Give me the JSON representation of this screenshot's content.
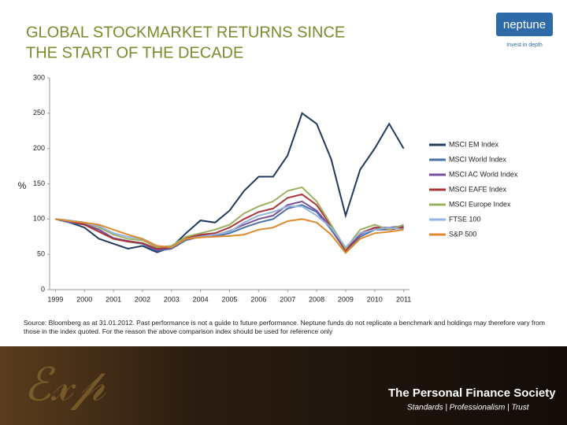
{
  "chart_data": {
    "type": "line",
    "title_lines": [
      "GLOBAL STOCKMARKET RETURNS SINCE",
      "THE START OF THE DECADE"
    ],
    "y_label": "%",
    "x": [
      1999,
      1999.5,
      2000,
      2000.5,
      2001,
      2001.5,
      2002,
      2002.5,
      2003,
      2003.5,
      2004,
      2004.5,
      2005,
      2005.5,
      2006,
      2006.5,
      2007,
      2007.5,
      2008,
      2008.5,
      2009,
      2009.5,
      2010,
      2010.5,
      2011
    ],
    "series": [
      {
        "name": "MSCI EM Index",
        "color": "#1f3a5c",
        "values": [
          100,
          95,
          88,
          72,
          65,
          58,
          62,
          53,
          60,
          80,
          98,
          95,
          112,
          140,
          160,
          160,
          190,
          250,
          235,
          185,
          105,
          170,
          200,
          235,
          200
        ]
      },
      {
        "name": "MSCI World Index",
        "color": "#4a70a8",
        "values": [
          100,
          95,
          92,
          85,
          72,
          68,
          65,
          55,
          58,
          70,
          75,
          75,
          80,
          88,
          95,
          100,
          115,
          120,
          110,
          85,
          55,
          75,
          85,
          85,
          88
        ]
      },
      {
        "name": "MSCI AC World Index",
        "color": "#7b4f9c",
        "values": [
          100,
          96,
          93,
          85,
          73,
          69,
          66,
          56,
          59,
          72,
          77,
          77,
          83,
          92,
          100,
          105,
          120,
          125,
          112,
          88,
          56,
          78,
          88,
          88,
          90
        ]
      },
      {
        "name": "MSCI EAFE Index",
        "color": "#a83838",
        "values": [
          100,
          97,
          92,
          82,
          72,
          68,
          66,
          58,
          60,
          73,
          78,
          80,
          88,
          100,
          110,
          115,
          130,
          135,
          120,
          90,
          55,
          80,
          88,
          85,
          88
        ]
      },
      {
        "name": "MSCI Europe Index",
        "color": "#9bb060",
        "values": [
          100,
          98,
          95,
          88,
          78,
          72,
          70,
          60,
          62,
          75,
          80,
          85,
          92,
          108,
          118,
          125,
          140,
          145,
          125,
          92,
          58,
          85,
          92,
          85,
          92
        ]
      },
      {
        "name": "FTSE 100",
        "color": "#93b3e0",
        "values": [
          100,
          98,
          95,
          90,
          80,
          75,
          72,
          62,
          60,
          72,
          75,
          78,
          82,
          95,
          105,
          110,
          118,
          118,
          105,
          88,
          60,
          80,
          85,
          88,
          85
        ]
      },
      {
        "name": "S&P 500",
        "color": "#e08a30",
        "values": [
          100,
          97,
          95,
          92,
          85,
          78,
          72,
          62,
          60,
          72,
          74,
          75,
          76,
          78,
          85,
          88,
          97,
          100,
          95,
          78,
          52,
          72,
          80,
          82,
          85
        ]
      }
    ],
    "xlim": [
      1998.8,
      2011.2
    ],
    "xticks": [
      1999,
      2000,
      2001,
      2002,
      2003,
      2004,
      2005,
      2006,
      2007,
      2008,
      2009,
      2010,
      2011
    ],
    "ylim": [
      0,
      300
    ],
    "yticks": [
      0,
      50,
      100,
      150,
      200,
      250,
      300
    ],
    "grid": false,
    "legend": "right",
    "title_color": "#7d8a2e"
  },
  "source": "Source: Bloomberg as at 31.01.2012. Past performance is not a guide to future performance. Neptune funds do not replicate a benchmark and holdings may therefore vary from those in the index quoted. For the reason the above comparison index should be used for reference only",
  "logo": {
    "name": "neptune",
    "tagline": "Invest in depth"
  },
  "footer": {
    "title": "The Personal Finance Society",
    "motto": "Standards | Professionalism | Trust"
  }
}
